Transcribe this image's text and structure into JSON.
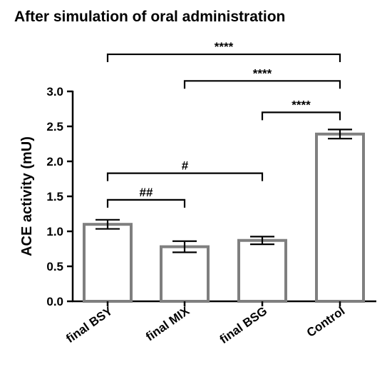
{
  "chart_data": {
    "type": "bar",
    "title": "After simulation of oral administration",
    "ylabel": "ACE activity (mU)",
    "xlabel": "",
    "ylim": [
      0,
      3.0
    ],
    "yticks": [
      0.0,
      0.5,
      1.0,
      1.5,
      2.0,
      2.5,
      3.0
    ],
    "ytick_labels": [
      "0.0",
      "0.5",
      "1.0",
      "1.5",
      "2.0",
      "2.5",
      "3.0"
    ],
    "categories": [
      "final BSY",
      "final MIX",
      "final BSG",
      "Control"
    ],
    "values": [
      1.1,
      0.78,
      0.87,
      2.39
    ],
    "errors": [
      0.065,
      0.08,
      0.055,
      0.065
    ],
    "grid": false,
    "comparisons": [
      {
        "from": 0,
        "to": 3,
        "y": 3.53,
        "label": "****"
      },
      {
        "from": 1,
        "to": 3,
        "y": 3.15,
        "label": "****"
      },
      {
        "from": 2,
        "to": 3,
        "y": 2.7,
        "label": "****"
      },
      {
        "from": 0,
        "to": 2,
        "y": 1.83,
        "label": "#"
      },
      {
        "from": 0,
        "to": 1,
        "y": 1.45,
        "label": "##"
      }
    ],
    "colors": {
      "bar_edge": "#7f7f7f",
      "bar_fill": "#ffffff",
      "ink": "#000000"
    }
  }
}
